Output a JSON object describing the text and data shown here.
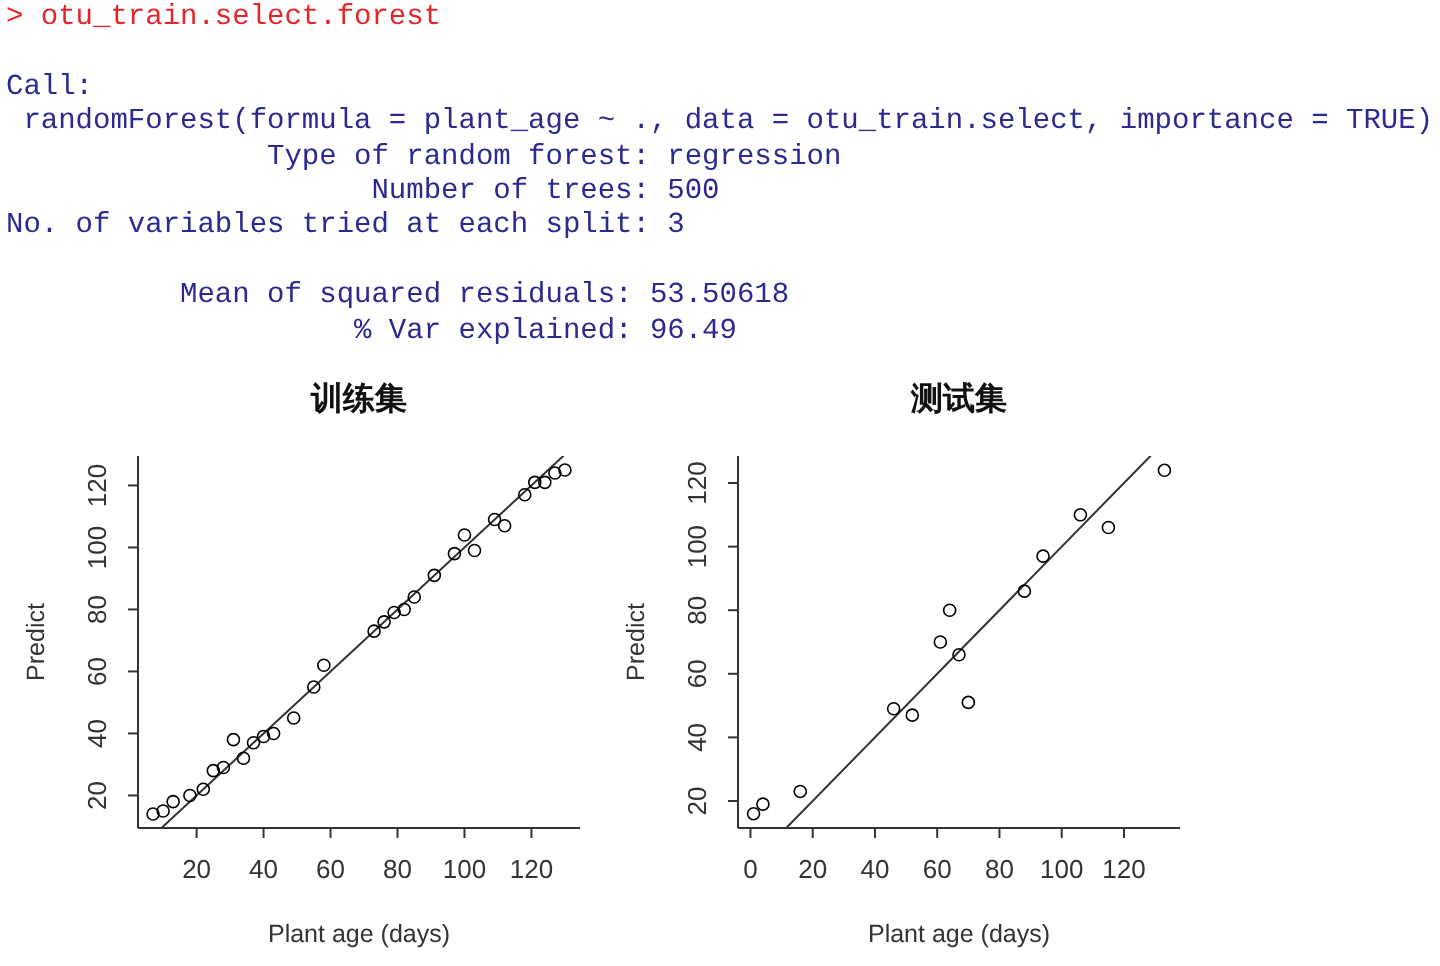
{
  "chart_data": [
    {
      "type": "other",
      "title": "> otu_train.select.forest",
      "annotations": [
        "Call:",
        " randomForest(formula = plant_age ~ ., data = otu_train.select, importance = TRUE)",
        "               Type of random forest: regression",
        "                     Number of trees: 500",
        "No. of variables tried at each split: 3"
      ]
    },
    {
      "type": "other",
      "annotations": [
        "          Mean of squared residuals: 53.50618",
        "                    % Var explained: 96.49"
      ]
    },
    {
      "type": "scatter",
      "title": "训练集",
      "xlabel": "Plant age (days)",
      "ylabel": "Predict",
      "xlim": [
        2.5,
        134.5
      ],
      "ylim": [
        9.5,
        129.5
      ],
      "xticks": [
        20,
        40,
        60,
        80,
        100,
        120
      ],
      "yticks": [
        20,
        40,
        60,
        80,
        100,
        120
      ],
      "marker": "circle",
      "series": [
        {
          "type": "scatter",
          "color": "#000000",
          "x": [
            7,
            10,
            13,
            18,
            22,
            25,
            28,
            31,
            34,
            37,
            40,
            43,
            49,
            55,
            58,
            73,
            76,
            79,
            82,
            85,
            91,
            97,
            100,
            103,
            109,
            112,
            118,
            121,
            124,
            127,
            130
          ],
          "values": [
            14,
            15,
            18,
            20,
            22,
            28,
            29,
            38,
            32,
            37,
            39,
            40,
            45,
            55,
            62,
            73,
            76,
            79,
            80,
            84,
            91,
            98,
            104,
            99,
            109,
            107,
            117,
            121,
            121,
            124,
            125
          ]
        },
        {
          "type": "line",
          "color": "#333333",
          "marker": "none",
          "x": [
            9.5,
            129.5
          ],
          "values": [
            9.5,
            129.5
          ]
        }
      ]
    },
    {
      "type": "scatter",
      "title": "测试集",
      "xlabel": "Plant age (days)",
      "ylabel": "Predict",
      "xlim": [
        -4,
        138
      ],
      "ylim": [
        11.5,
        128.5
      ],
      "xticks": [
        0,
        20,
        40,
        60,
        80,
        100,
        120
      ],
      "yticks": [
        20,
        40,
        60,
        80,
        100,
        120
      ],
      "marker": "circle",
      "series": [
        {
          "type": "scatter",
          "color": "#000000",
          "x": [
            1,
            4,
            16,
            46,
            52,
            61,
            64,
            67,
            70,
            88,
            94,
            106,
            115,
            133
          ],
          "values": [
            16,
            19,
            23,
            49,
            47,
            70,
            80,
            66,
            51,
            86,
            97,
            110,
            106,
            124
          ]
        },
        {
          "type": "line",
          "color": "#333333",
          "marker": "none",
          "x": [
            11.5,
            128.5
          ],
          "values": [
            11.5,
            128.5
          ]
        }
      ]
    }
  ]
}
